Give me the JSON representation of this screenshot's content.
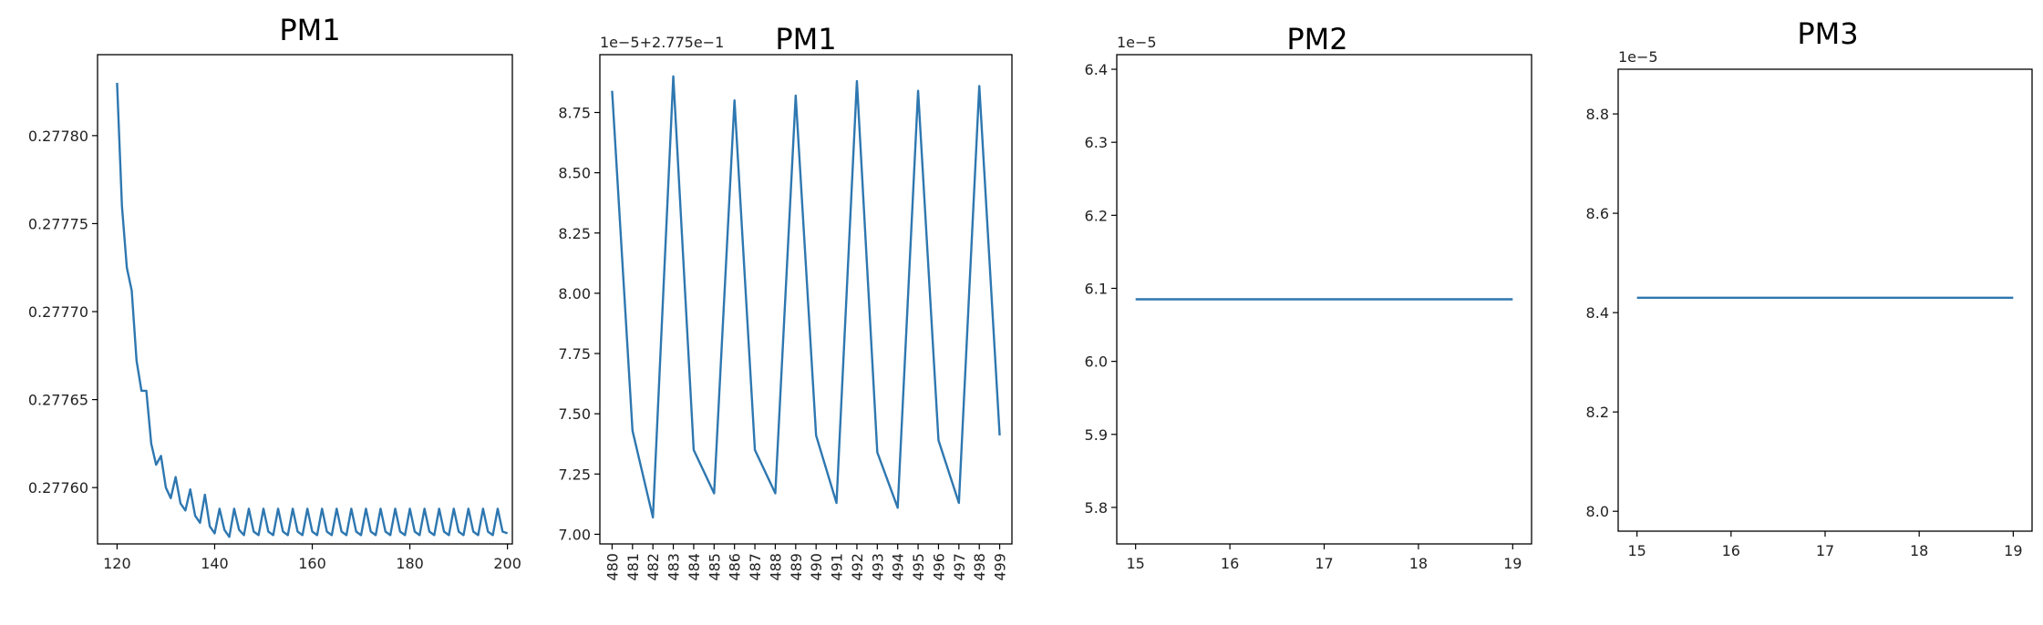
{
  "chart_data": [
    {
      "type": "line",
      "title": "PM1",
      "xlabel": "",
      "ylabel": "",
      "xlim": [
        116,
        201
      ],
      "ylim": [
        0.277568,
        0.277846
      ],
      "x_ticks": [
        120,
        140,
        160,
        180,
        200
      ],
      "x_tick_labels": [
        "120",
        "140",
        "160",
        "180",
        "200"
      ],
      "y_ticks": [
        0.2776,
        0.27765,
        0.2777,
        0.27775,
        0.2778
      ],
      "y_tick_labels": [
        "0.27760",
        "0.27765",
        "0.27770",
        "0.27775",
        "0.27780"
      ],
      "x_tick_rotation": 0,
      "offset_text": "",
      "grid": false,
      "series": [
        {
          "color": "#2e77b0",
          "x": [
            120,
            121,
            122,
            123,
            124,
            125,
            126,
            127,
            128,
            129,
            130,
            131,
            132,
            133,
            134,
            135,
            136,
            137,
            138,
            139,
            140,
            141,
            142,
            143,
            144,
            145,
            146,
            147,
            148,
            149,
            150,
            151,
            152,
            153,
            154,
            155,
            156,
            157,
            158,
            159,
            160,
            161,
            162,
            163,
            164,
            165,
            166,
            167,
            168,
            169,
            170,
            171,
            172,
            173,
            174,
            175,
            176,
            177,
            178,
            179,
            180,
            181,
            182,
            183,
            184,
            185,
            186,
            187,
            188,
            189,
            190,
            191,
            192,
            193,
            194,
            195,
            196,
            197,
            198,
            199,
            200
          ],
          "values": [
            0.27783,
            0.27776,
            0.277725,
            0.277712,
            0.277672,
            0.277655,
            0.277655,
            0.277625,
            0.277613,
            0.277618,
            0.2776,
            0.277594,
            0.277606,
            0.277591,
            0.277587,
            0.277599,
            0.277584,
            0.27758,
            0.277596,
            0.277578,
            0.277574,
            0.277588,
            0.277576,
            0.277572,
            0.277588,
            0.277576,
            0.277573,
            0.277588,
            0.277575,
            0.277573,
            0.277588,
            0.277575,
            0.277573,
            0.277588,
            0.277575,
            0.277573,
            0.277588,
            0.277575,
            0.277573,
            0.277588,
            0.277575,
            0.277573,
            0.277588,
            0.277575,
            0.277573,
            0.277588,
            0.277575,
            0.277573,
            0.277588,
            0.277575,
            0.277573,
            0.277588,
            0.277575,
            0.277573,
            0.277588,
            0.277575,
            0.277573,
            0.277588,
            0.277575,
            0.277573,
            0.277588,
            0.277575,
            0.277573,
            0.277588,
            0.277575,
            0.277573,
            0.277588,
            0.277575,
            0.277573,
            0.277588,
            0.277575,
            0.277573,
            0.277588,
            0.277575,
            0.277573,
            0.277588,
            0.277575,
            0.277573,
            0.277588,
            0.277575,
            0.277574
          ]
        }
      ]
    },
    {
      "type": "line",
      "title": "PM1",
      "xlabel": "",
      "ylabel": "",
      "xlim": [
        -0.6,
        19.6
      ],
      "ylim": [
        6.96,
        8.99
      ],
      "x_ticks": [
        0,
        1,
        2,
        3,
        4,
        5,
        6,
        7,
        8,
        9,
        10,
        11,
        12,
        13,
        14,
        15,
        16,
        17,
        18,
        19
      ],
      "x_tick_labels": [
        "480",
        "481",
        "482",
        "483",
        "484",
        "485",
        "486",
        "487",
        "488",
        "489",
        "490",
        "491",
        "492",
        "493",
        "494",
        "495",
        "496",
        "497",
        "498",
        "499"
      ],
      "y_ticks": [
        7.0,
        7.25,
        7.5,
        7.75,
        8.0,
        8.25,
        8.5,
        8.75
      ],
      "y_tick_labels": [
        "7.00",
        "7.25",
        "7.50",
        "7.75",
        "8.00",
        "8.25",
        "8.50",
        "8.75"
      ],
      "x_tick_rotation": -90,
      "offset_text": "1e−5+2.775e−1",
      "grid": false,
      "series": [
        {
          "color": "#2e77b0",
          "x": [
            480,
            481,
            482,
            483,
            484,
            485,
            486,
            487,
            488,
            489,
            490,
            491,
            492,
            493,
            494,
            495,
            496,
            497,
            498,
            499
          ],
          "values": [
            8.84,
            7.43,
            7.07,
            8.9,
            7.35,
            7.17,
            8.8,
            7.35,
            7.17,
            8.82,
            7.41,
            7.13,
            8.88,
            7.34,
            7.11,
            8.84,
            7.39,
            7.13,
            8.86,
            7.41
          ]
        }
      ]
    },
    {
      "type": "line",
      "title": "PM2",
      "xlabel": "",
      "ylabel": "",
      "xlim": [
        14.8,
        19.2
      ],
      "ylim": [
        5.75,
        6.42
      ],
      "x_ticks": [
        15,
        16,
        17,
        18,
        19
      ],
      "x_tick_labels": [
        "15",
        "16",
        "17",
        "18",
        "19"
      ],
      "y_ticks": [
        5.8,
        5.9,
        6.0,
        6.1,
        6.2,
        6.3,
        6.4
      ],
      "y_tick_labels": [
        "5.8",
        "5.9",
        "6.0",
        "6.1",
        "6.2",
        "6.3",
        "6.4"
      ],
      "x_tick_rotation": 0,
      "offset_text": "1e−5",
      "grid": false,
      "series": [
        {
          "color": "#2e77b0",
          "x": [
            15,
            16,
            17,
            18,
            19
          ],
          "values": [
            6.085,
            6.085,
            6.085,
            6.085,
            6.085
          ]
        }
      ]
    },
    {
      "type": "line",
      "title": "PM3",
      "xlabel": "",
      "ylabel": "",
      "xlim": [
        14.8,
        19.2
      ],
      "ylim": [
        7.96,
        8.89
      ],
      "x_ticks": [
        15,
        16,
        17,
        18,
        19
      ],
      "x_tick_labels": [
        "15",
        "16",
        "17",
        "18",
        "19"
      ],
      "y_ticks": [
        8.0,
        8.2,
        8.4,
        8.6,
        8.8
      ],
      "y_tick_labels": [
        "8.0",
        "8.2",
        "8.4",
        "8.6",
        "8.8"
      ],
      "x_tick_rotation": 0,
      "offset_text": "1e−5",
      "grid": false,
      "series": [
        {
          "color": "#2e77b0",
          "x": [
            15,
            16,
            17,
            18,
            19
          ],
          "values": [
            8.43,
            8.43,
            8.43,
            8.43,
            8.43
          ]
        }
      ]
    }
  ]
}
